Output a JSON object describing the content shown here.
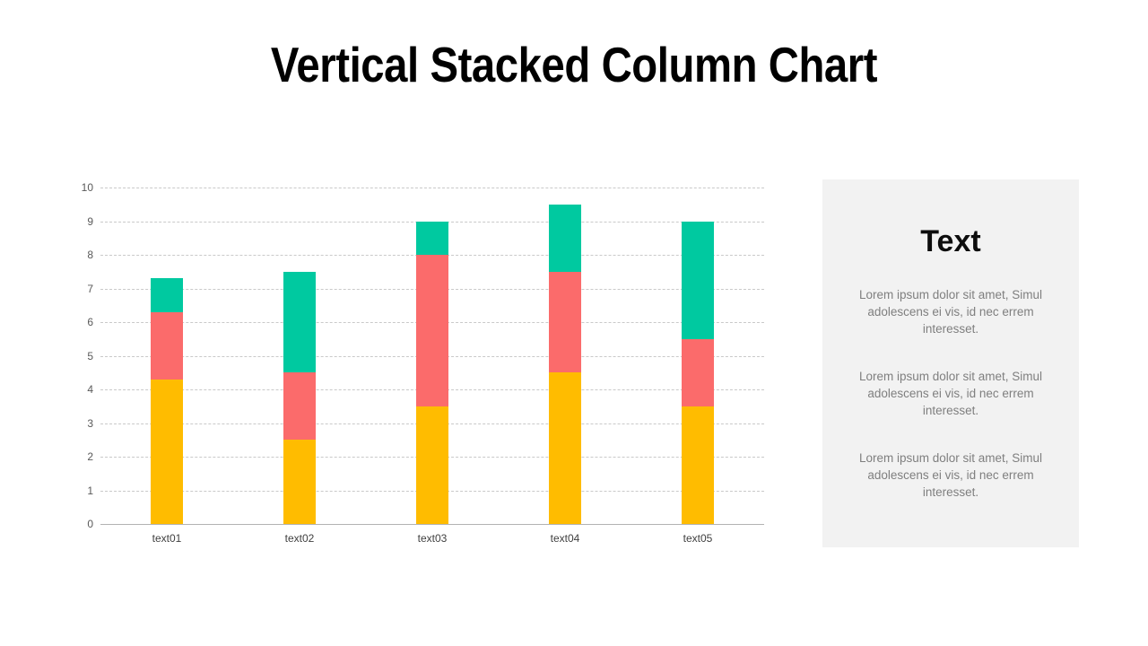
{
  "title": "Vertical Stacked Column Chart",
  "chart_data": {
    "type": "bar",
    "stacked": true,
    "title": "Vertical Stacked Column Chart",
    "categories": [
      "text01",
      "text02",
      "text03",
      "text04",
      "text05"
    ],
    "series": [
      {
        "name": "bottom-orange",
        "color": "#FFBC00",
        "values": [
          4.3,
          2.5,
          3.5,
          4.5,
          3.5
        ]
      },
      {
        "name": "middle-red",
        "color": "#FB6B6B",
        "values": [
          2.0,
          2.0,
          4.5,
          3.0,
          2.0
        ]
      },
      {
        "name": "top-green",
        "color": "#00C9A0",
        "values": [
          1.0,
          3.0,
          1.0,
          2.0,
          3.5
        ]
      }
    ],
    "stack_totals": [
      7.3,
      7.5,
      9.0,
      9.5,
      9.0
    ],
    "xlabel": "",
    "ylabel": "",
    "ylim": [
      0,
      10
    ],
    "yticks": [
      0,
      1,
      2,
      3,
      4,
      5,
      6,
      7,
      8,
      9,
      10
    ],
    "grid": "horizontal-dashed",
    "legend": "none"
  },
  "side_panel": {
    "heading": "Text",
    "paragraphs": [
      "Lorem ipsum dolor sit amet, Simul adolescens ei vis, id nec errem interesset.",
      "Lorem ipsum dolor sit amet, Simul adolescens ei vis, id nec errem interesset.",
      "Lorem ipsum dolor sit amet, Simul adolescens ei vis, id nec errem interesset."
    ]
  },
  "colors": {
    "background": "#FFFFFF",
    "panel_background": "#F2F2F2",
    "gridline": "#C9C9C9",
    "axis_line": "#B3B3B3",
    "y_tick_label": "#595959",
    "x_tick_label": "#404040",
    "paragraph_text": "#7F7F7F",
    "title_text": "#000000"
  }
}
